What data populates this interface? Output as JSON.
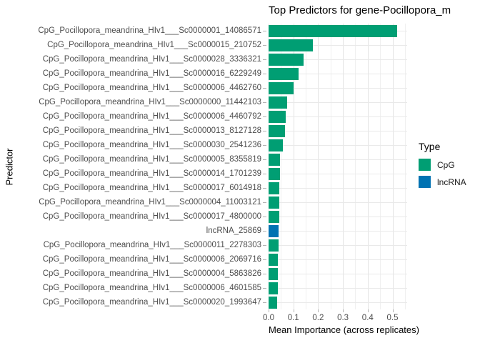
{
  "title": "Top Predictors for gene-Pocillopora_m",
  "legend": {
    "title": "Type",
    "items": [
      {
        "label": "CpG",
        "color": "#009E73"
      },
      {
        "label": "lncRNA",
        "color": "#0072B2"
      }
    ]
  },
  "chart_data": {
    "type": "bar",
    "orientation": "horizontal",
    "title": "Top Predictors for gene-Pocillopora_m",
    "xlabel": "Mean Importance (across replicates)",
    "ylabel": "Predictor",
    "xlim": [
      0,
      0.556
    ],
    "x_ticks": [
      0.0,
      0.1,
      0.2,
      0.3,
      0.4,
      0.5
    ],
    "x_tick_labels": [
      "0.0",
      "0.1",
      "0.2",
      "0.3",
      "0.4",
      "0.5"
    ],
    "x_minor_gridlines": [
      0.05,
      0.15,
      0.25,
      0.35,
      0.45,
      0.55
    ],
    "grid": true,
    "legend_position": "right",
    "categories": [
      "CpG_Pocillopora_meandrina_HIv1___Sc0000001_14086571",
      "CpG_Pocillopora_meandrina_HIv1___Sc0000015_210752",
      "CpG_Pocillopora_meandrina_HIv1___Sc0000028_3336321",
      "CpG_Pocillopora_meandrina_HIv1___Sc0000016_6229249",
      "CpG_Pocillopora_meandrina_HIv1___Sc0000006_4462760",
      "CpG_Pocillopora_meandrina_HIv1___Sc0000000_11442103",
      "CpG_Pocillopora_meandrina_HIv1___Sc0000006_4460792",
      "CpG_Pocillopora_meandrina_HIv1___Sc0000013_8127128",
      "CpG_Pocillopora_meandrina_HIv1___Sc0000030_2541236",
      "CpG_Pocillopora_meandrina_HIv1___Sc0000005_8355819",
      "CpG_Pocillopora_meandrina_HIv1___Sc0000014_1701239",
      "CpG_Pocillopora_meandrina_HIv1___Sc0000017_6014918",
      "CpG_Pocillopora_meandrina_HIv1___Sc0000004_11003121",
      "CpG_Pocillopora_meandrina_HIv1___Sc0000017_4800000",
      "lncRNA_25869",
      "CpG_Pocillopora_meandrina_HIv1___Sc0000011_2278303",
      "CpG_Pocillopora_meandrina_HIv1___Sc0000006_2069716",
      "CpG_Pocillopora_meandrina_HIv1___Sc0000004_5863826",
      "CpG_Pocillopora_meandrina_HIv1___Sc0000006_4601585",
      "CpG_Pocillopora_meandrina_HIv1___Sc0000020_1993647"
    ],
    "values": [
      0.52,
      0.18,
      0.142,
      0.121,
      0.102,
      0.076,
      0.069,
      0.066,
      0.059,
      0.047,
      0.047,
      0.044,
      0.044,
      0.042,
      0.04,
      0.039,
      0.038,
      0.038,
      0.037,
      0.035
    ],
    "types": [
      "CpG",
      "CpG",
      "CpG",
      "CpG",
      "CpG",
      "CpG",
      "CpG",
      "CpG",
      "CpG",
      "CpG",
      "CpG",
      "CpG",
      "CpG",
      "CpG",
      "lncRNA",
      "CpG",
      "CpG",
      "CpG",
      "CpG",
      "CpG"
    ],
    "colors": {
      "CpG": "#009E73",
      "lncRNA": "#0072B2"
    }
  }
}
